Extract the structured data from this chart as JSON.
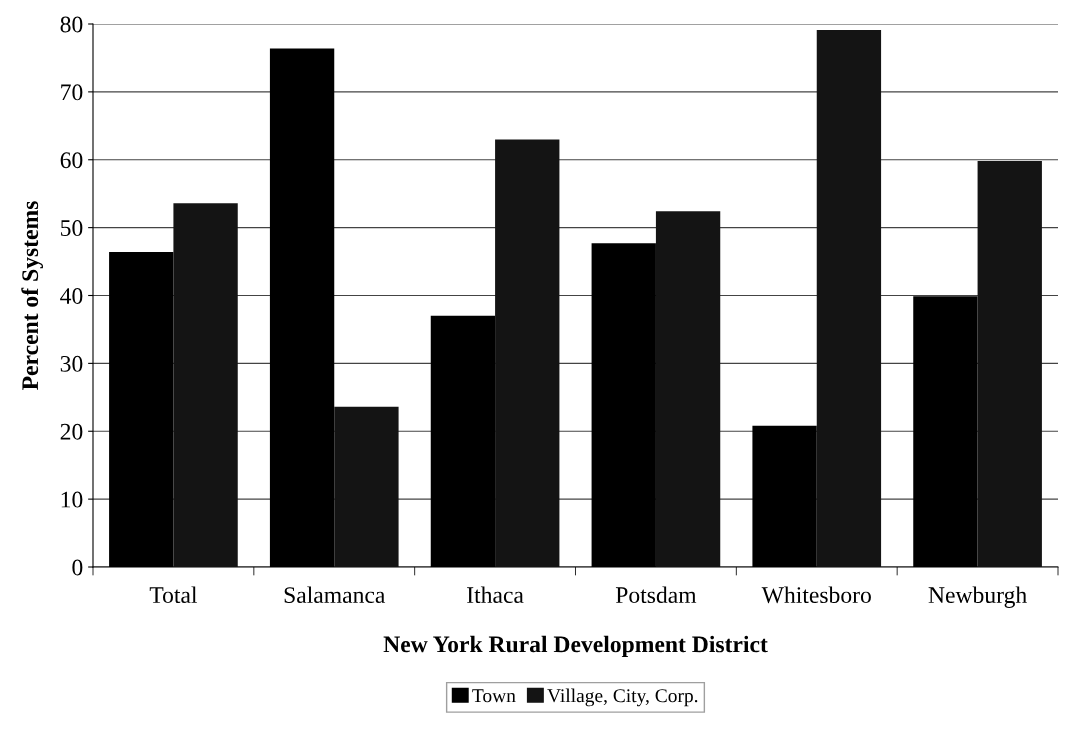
{
  "chart_data": {
    "type": "bar",
    "xlabel": "New York Rural Development District",
    "ylabel": "Percent of Systems",
    "categories": [
      "Total",
      "Salamanca",
      "Ithaca",
      "Potsdam",
      "Whitesboro",
      "Newburgh"
    ],
    "series": [
      {
        "name": "Town",
        "color": "#000000",
        "values": [
          46.4,
          76.4,
          37.0,
          47.7,
          20.8,
          39.9
        ]
      },
      {
        "name": "Village, City, Corp.",
        "color": "#141414",
        "values": [
          53.6,
          23.6,
          63.0,
          52.4,
          79.1,
          59.8
        ]
      }
    ],
    "ylim": [
      0,
      80
    ],
    "yticks": [
      0,
      10,
      20,
      30,
      40,
      50,
      60,
      70,
      80
    ],
    "grid": "y",
    "legend": "bottom"
  }
}
